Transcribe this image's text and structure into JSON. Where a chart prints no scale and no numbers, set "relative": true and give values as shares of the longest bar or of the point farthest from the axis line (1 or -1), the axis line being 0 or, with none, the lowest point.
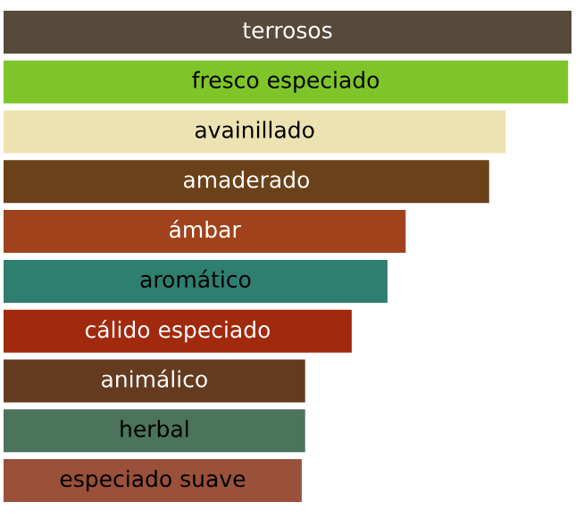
{
  "chart_data": {
    "type": "bar",
    "orientation": "horizontal",
    "relative": true,
    "categories": [
      "terrosos",
      "fresco especiado",
      "avainillado",
      "amaderado",
      "ámbar",
      "aromático",
      "cálido especiado",
      "animálico",
      "herbal",
      "especiado suave"
    ],
    "values": [
      1,
      0.994,
      0.884,
      0.855,
      0.708,
      0.676,
      0.613,
      0.531,
      0.531,
      0.525
    ],
    "colors": [
      "#574a3b",
      "#7ec52a",
      "#ede2b2",
      "#6b4119",
      "#a0431c",
      "#2f7f70",
      "#a1290e",
      "#643b1f",
      "#4c735b",
      "#9a5039"
    ]
  }
}
